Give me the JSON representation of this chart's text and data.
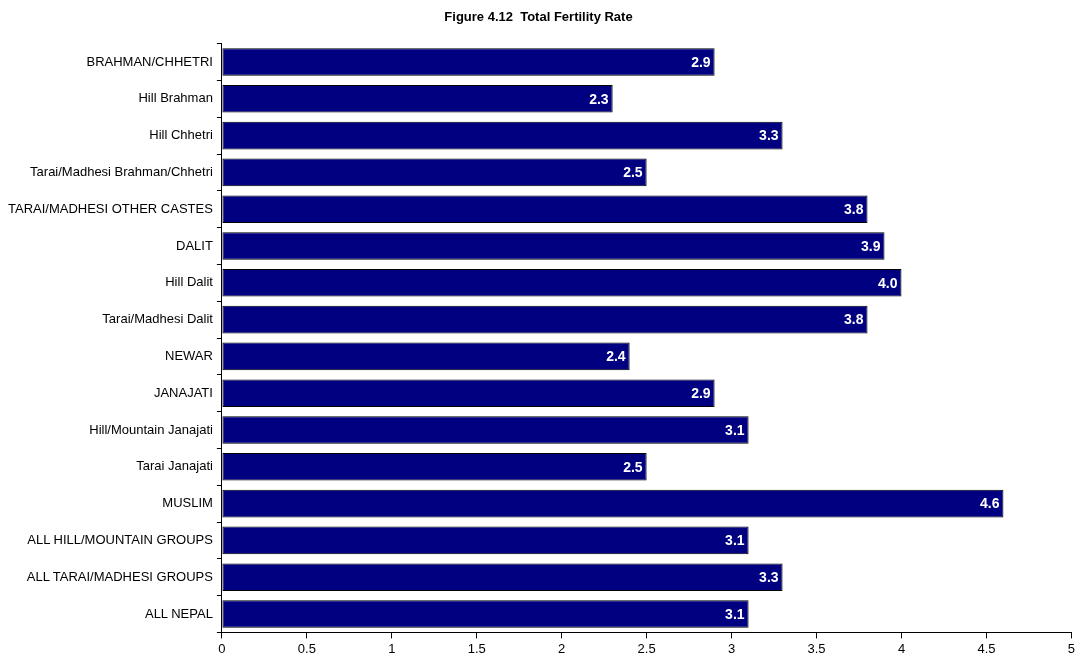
{
  "chart_data": {
    "type": "bar",
    "orientation": "horizontal",
    "title": "Figure 4.12  Total Fertility Rate",
    "categories": [
      "BRAHMAN/CHHETRI",
      "Hill Brahman",
      "Hill Chhetri",
      "Tarai/Madhesi Brahman/Chhetri",
      "TARAI/MADHESI OTHER CASTES",
      "DALIT",
      "Hill Dalit",
      "Tarai/Madhesi Dalit",
      "NEWAR",
      "JANAJATI",
      "Hill/Mountain Janajati",
      "Tarai Janajati",
      "MUSLIM",
      "ALL HILL/MOUNTAIN GROUPS",
      "ALL TARAI/MADHESI GROUPS",
      "ALL NEPAL"
    ],
    "values": [
      2.9,
      2.3,
      3.3,
      2.5,
      3.8,
      3.9,
      4.0,
      3.8,
      2.4,
      2.9,
      3.1,
      2.5,
      4.6,
      3.1,
      3.3,
      3.1
    ],
    "value_labels": [
      "2.9",
      "2.3",
      "3.3",
      "2.5",
      "3.8",
      "3.9",
      "4.0",
      "3.8",
      "2.4",
      "2.9",
      "3.1",
      "2.5",
      "4.6",
      "3.1",
      "3.3",
      "3.1"
    ],
    "color": "#000080",
    "xlim": [
      0,
      5
    ],
    "xticks": [
      0,
      0.5,
      1,
      1.5,
      2,
      2.5,
      3,
      3.5,
      4,
      4.5,
      5
    ],
    "grid": false,
    "legend": false
  }
}
